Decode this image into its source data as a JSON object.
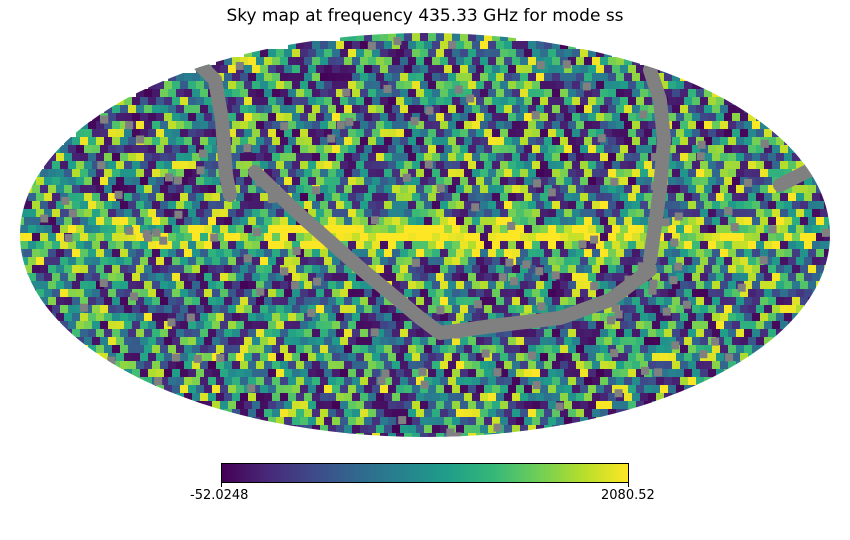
{
  "chart_data": {
    "type": "heatmap",
    "projection": "mollweide",
    "title": "Sky map at frequency 435.33 GHz for mode ss",
    "colormap": "viridis",
    "missing_pixel_color": "#808080",
    "colorbar": {
      "orientation": "horizontal",
      "min": -52.0248,
      "max": 2080.52,
      "min_label": "-52.0248",
      "max_label": "2080.52"
    },
    "colors": {
      "viridis_stops": [
        "#440154",
        "#482878",
        "#3e4989",
        "#31688e",
        "#26828e",
        "#1f9e89",
        "#35b779",
        "#6ece58",
        "#b5de2b",
        "#fde725"
      ],
      "missing": "#808080"
    }
  }
}
